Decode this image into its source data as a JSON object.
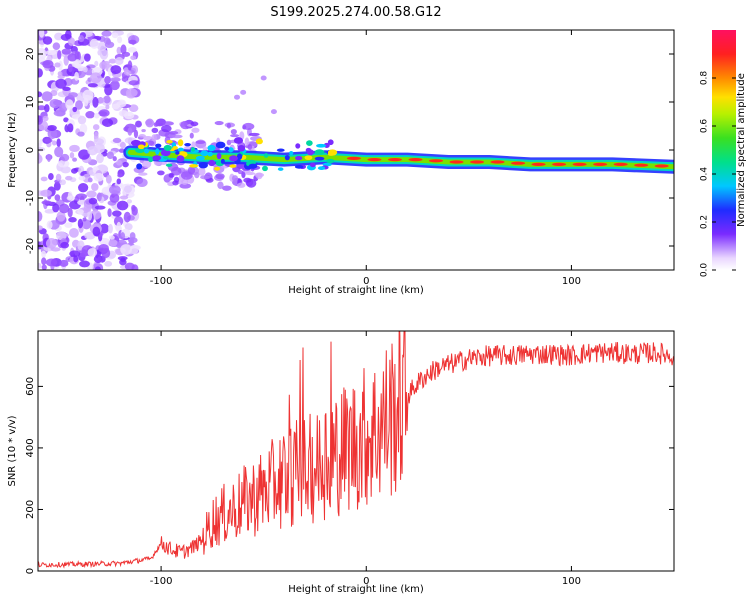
{
  "title": "S199.2025.274.00.58.G12",
  "chart_data": [
    {
      "type": "heatmap",
      "title": "S199.2025.274.00.58.G12",
      "xlabel": "Height of straight line (km)",
      "ylabel": "Frequency (Hz)",
      "xlim": [
        -160,
        150
      ],
      "ylim": [
        -25,
        25
      ],
      "xticks": [
        -100,
        0,
        100
      ],
      "yticks": [
        -20,
        -10,
        0,
        10,
        20
      ],
      "colorbar": {
        "label": "Normalized spectral amplitude",
        "ticks": [
          0.0,
          0.2,
          0.4,
          0.6,
          0.8
        ],
        "range": [
          0,
          1
        ]
      },
      "ridge_line": {
        "x": [
          -115,
          -100,
          -80,
          -60,
          -40,
          -20,
          0,
          20,
          40,
          60,
          80,
          100,
          120,
          150
        ],
        "y": [
          -0.5,
          -1,
          -1.5,
          -1.5,
          -2,
          -1.5,
          -2,
          -2,
          -2.5,
          -2.5,
          -3,
          -3,
          -3,
          -3.5
        ]
      }
    },
    {
      "type": "line",
      "xlabel": "Height of straight line (km)",
      "ylabel": "SNR (10 * v/v)",
      "xlim": [
        -160,
        150
      ],
      "ylim": [
        0,
        780
      ],
      "xticks": [
        -100,
        0,
        100
      ],
      "yticks": [
        0,
        200,
        400,
        600
      ],
      "color": "#ee3333",
      "series": [
        {
          "name": "SNR",
          "x": [
            -160,
            -140,
            -120,
            -105,
            -100,
            -95,
            -90,
            -85,
            -80,
            -75,
            -70,
            -65,
            -60,
            -55,
            -50,
            -45,
            -40,
            -35,
            -30,
            -25,
            -20,
            -15,
            -10,
            -5,
            0,
            5,
            10,
            15,
            20,
            25,
            30,
            35,
            40,
            45,
            50,
            55,
            60,
            70,
            80,
            90,
            100,
            110,
            120,
            130,
            140,
            150
          ],
          "values": [
            20,
            22,
            25,
            40,
            90,
            70,
            60,
            75,
            100,
            160,
            180,
            200,
            220,
            240,
            260,
            280,
            310,
            320,
            330,
            330,
            370,
            390,
            400,
            420,
            440,
            460,
            490,
            530,
            570,
            610,
            640,
            660,
            670,
            680,
            690,
            695,
            700,
            700,
            705,
            705,
            700,
            710,
            710,
            705,
            710,
            700
          ]
        }
      ]
    }
  ]
}
